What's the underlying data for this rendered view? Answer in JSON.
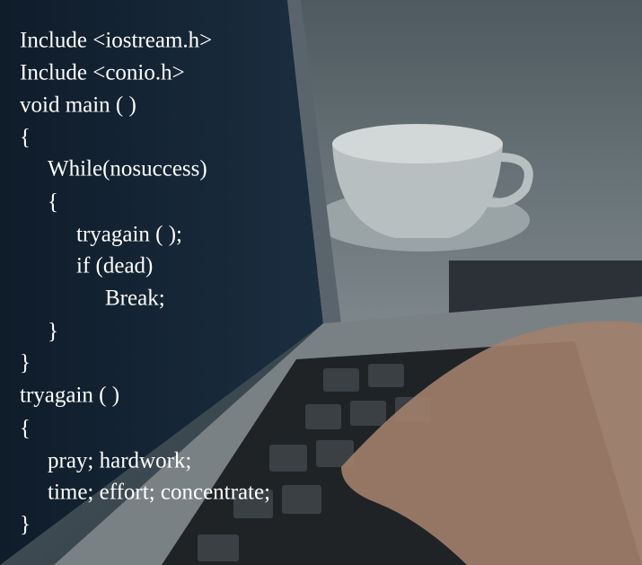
{
  "code_lines": [
    "Include <iostream.h>",
    "Include <conio.h>",
    "void main ( )",
    "{",
    "While(nosuccess)",
    "{",
    "tryagain ( );",
    "if (dead)",
    "Break;",
    "}",
    "}",
    "tryagain ( )",
    "{",
    "pray; hardwork;",
    "time; effort; concentrate;",
    "}"
  ]
}
